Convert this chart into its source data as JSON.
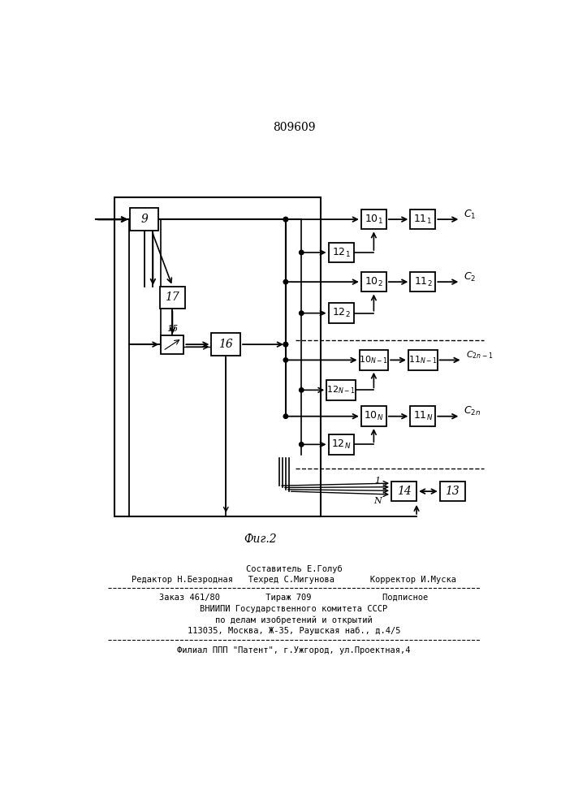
{
  "bg_color": "#ffffff",
  "patent_number": "809609",
  "fig_label": "Фиг.2",
  "footer_lines": [
    "Составитель Е.Голуб",
    "Редактор Н.Безродная   Техред С.Мигунова       Корректор И.Муска",
    "Заказ 461/80         Тираж 709              Подписное",
    "ВНИИПИ Государственного комитета СССР",
    "по делам изобретений и открытий",
    "113035, Москва, Ж-35, Раушская наб., д.4/5",
    "Филиал ППП \"Патент\", г.Ужгород, ул.Проектная,4"
  ]
}
